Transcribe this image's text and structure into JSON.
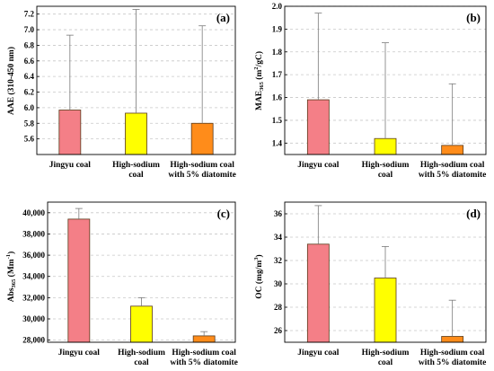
{
  "chart_data": [
    {
      "type": "bar",
      "panel_label": "(a)",
      "ylabel": "AAE (310-450 nm)",
      "categories": [
        [
          "Jingyu coal"
        ],
        [
          "High-sodium",
          "coal"
        ],
        [
          "High-sodium coal",
          "with 5% diatomite"
        ]
      ],
      "values": [
        5.97,
        5.93,
        5.8
      ],
      "error_upper": [
        6.93,
        7.26,
        7.05
      ],
      "ylim": [
        5.4,
        7.3
      ],
      "yticks": [
        5.6,
        5.8,
        6.0,
        6.2,
        6.4,
        6.6,
        6.8,
        7.0,
        7.2
      ],
      "tick_labels": [
        "5.6",
        "5.8",
        "6.0",
        "6.2",
        "6.4",
        "6.6",
        "6.8",
        "7.0",
        "7.2"
      ],
      "colors": [
        "#f47f87",
        "#ffff00",
        "#ff8c1a"
      ],
      "grid": "horizontal dashed"
    },
    {
      "type": "bar",
      "panel_label": "(b)",
      "ylabel": "MAE365 (m2/gC)",
      "categories": [
        [
          "Jingyu coal"
        ],
        [
          "High-sodium",
          "coal"
        ],
        [
          "High-sodium coal",
          "with 5% diatomite"
        ]
      ],
      "values": [
        1.59,
        1.42,
        1.39
      ],
      "error_upper": [
        1.97,
        1.84,
        1.66
      ],
      "ylim": [
        1.35,
        2.0
      ],
      "yticks": [
        1.4,
        1.5,
        1.6,
        1.7,
        1.8,
        1.9,
        2.0
      ],
      "tick_labels": [
        "1.4",
        "1.5",
        "1.6",
        "1.7",
        "1.8",
        "1.9",
        "2.0"
      ],
      "colors": [
        "#f47f87",
        "#ffff00",
        "#ff8c1a"
      ],
      "grid": "horizontal dashed"
    },
    {
      "type": "bar",
      "panel_label": "(c)",
      "ylabel": "Abs365 (Mm-1)",
      "categories": [
        [
          "Jingyu coal"
        ],
        [
          "High-sodium",
          "coal"
        ],
        [
          "High-sodium coal",
          "with 5% diatomite"
        ]
      ],
      "values": [
        39400,
        31200,
        28400
      ],
      "error_upper": [
        40400,
        32000,
        28800
      ],
      "ylim": [
        27800,
        41000
      ],
      "yticks": [
        28000,
        30000,
        32000,
        34000,
        36000,
        38000,
        40000
      ],
      "tick_labels": [
        "28,000",
        "30,000",
        "32,000",
        "34,000",
        "36,000",
        "38,000",
        "40,000"
      ],
      "colors": [
        "#f47f87",
        "#ffff00",
        "#ff8c1a"
      ],
      "grid": "horizontal dashed"
    },
    {
      "type": "bar",
      "panel_label": "(d)",
      "ylabel": "OC (mg/m3)",
      "categories": [
        [
          "Jingyu coal"
        ],
        [
          "High-sodium",
          "coal"
        ],
        [
          "High-sodium coal",
          "with 5% diatomite"
        ]
      ],
      "values": [
        33.4,
        30.5,
        25.5
      ],
      "error_upper": [
        36.7,
        33.2,
        28.6
      ],
      "ylim": [
        25.0,
        37.0
      ],
      "yticks": [
        26,
        28,
        30,
        32,
        34,
        36
      ],
      "tick_labels": [
        "26",
        "28",
        "30",
        "32",
        "34",
        "36"
      ],
      "colors": [
        "#f47f87",
        "#ffff00",
        "#ff8c1a"
      ],
      "grid": "horizontal dashed"
    }
  ]
}
